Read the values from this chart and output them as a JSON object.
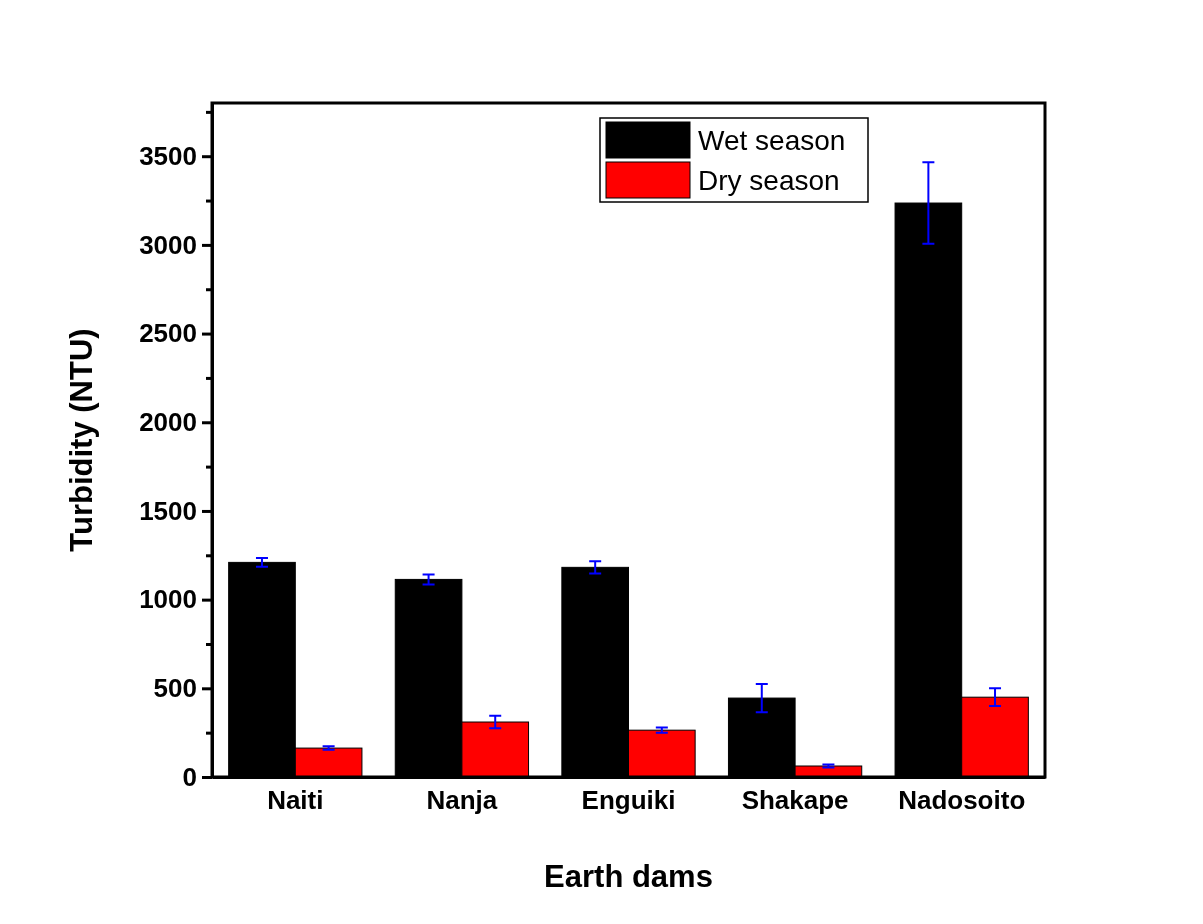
{
  "chart_data": {
    "type": "bar",
    "xlabel": "Earth dams",
    "ylabel": "Turbidity (NTU)",
    "categories": [
      "Naiti",
      "Nanja",
      "Enguiki",
      "Shakape",
      "Nadosoito"
    ],
    "series": [
      {
        "name": "Wet season",
        "color": "#000000",
        "values": [
          1210,
          1114,
          1182,
          445,
          3236
        ],
        "errors": [
          25,
          28,
          35,
          80,
          230
        ]
      },
      {
        "name": "Dry season",
        "color": "#ff0000",
        "values": [
          163,
          310,
          264,
          62,
          450
        ],
        "errors": [
          10,
          35,
          15,
          8,
          50
        ]
      }
    ],
    "ylim": [
      0,
      3800
    ],
    "yticks": [
      0,
      {
        "value": 250,
        "label": null
      },
      500,
      {
        "value": 750,
        "label": null
      },
      1000,
      {
        "value": 1250,
        "label": null
      },
      1500,
      {
        "value": 1750,
        "label": null
      },
      2000,
      {
        "value": 2250,
        "label": null
      },
      2500,
      {
        "value": 2750,
        "label": null
      },
      3000,
      {
        "value": 3250,
        "label": null
      },
      3500,
      {
        "value": 3750,
        "label": null
      }
    ],
    "grid": false,
    "legend": "top right"
  }
}
